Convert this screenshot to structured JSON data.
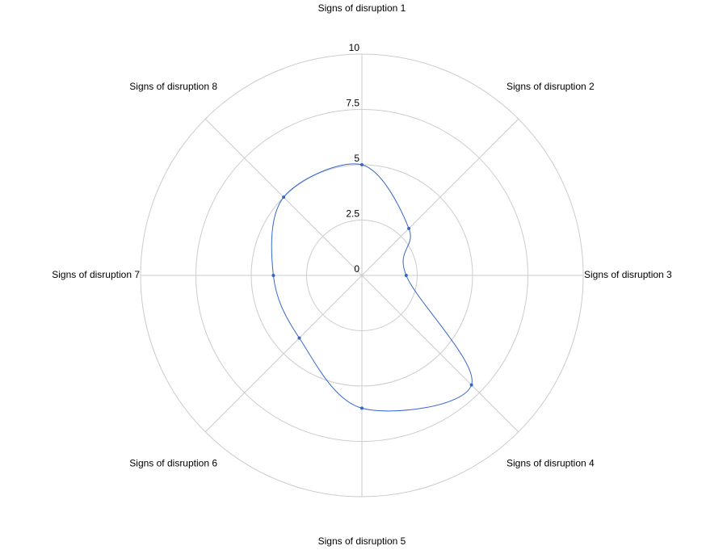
{
  "chart_data": {
    "type": "radar",
    "categories": [
      "Signs of disruption 1",
      "Signs of disruption 2",
      "Signs of disruption 3",
      "Signs of disruption 4",
      "Signs of disruption 5",
      "Signs of disruption 6",
      "Signs of disruption 7",
      "Signs of disruption 8"
    ],
    "values": [
      5,
      3,
      2,
      7,
      6,
      4,
      4,
      5
    ],
    "color": "#3366cc",
    "ylim": [
      0,
      10
    ],
    "yticks": [
      0,
      2.5,
      5,
      7.5,
      10
    ],
    "grid": true,
    "smooth": true
  }
}
